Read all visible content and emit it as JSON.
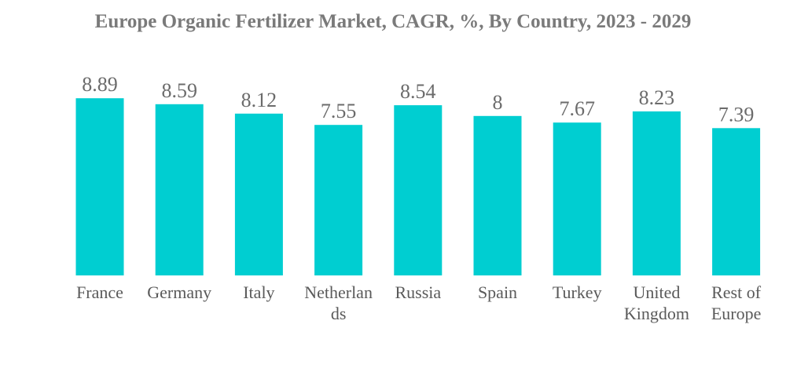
{
  "chart_data": {
    "type": "bar",
    "title": "Europe Organic Fertilizer Market, CAGR, %, By Country, 2023 - 2029",
    "categories": [
      [
        "France"
      ],
      [
        "Germany"
      ],
      [
        "Italy"
      ],
      [
        "Netherlan",
        "ds"
      ],
      [
        "Russia"
      ],
      [
        "Spain"
      ],
      [
        "Turkey"
      ],
      [
        "United",
        "Kingdom"
      ],
      [
        "Rest of",
        "Europe"
      ]
    ],
    "values": [
      8.89,
      8.59,
      8.12,
      7.55,
      8.54,
      8,
      7.67,
      8.23,
      7.39
    ],
    "value_labels": [
      "8.89",
      "8.59",
      "8.12",
      "7.55",
      "8.54",
      "8",
      "7.67",
      "8.23",
      "7.39"
    ],
    "xlabel": "",
    "ylabel": "",
    "grid": false,
    "legend": "none",
    "bar_color": "#00CED1"
  }
}
